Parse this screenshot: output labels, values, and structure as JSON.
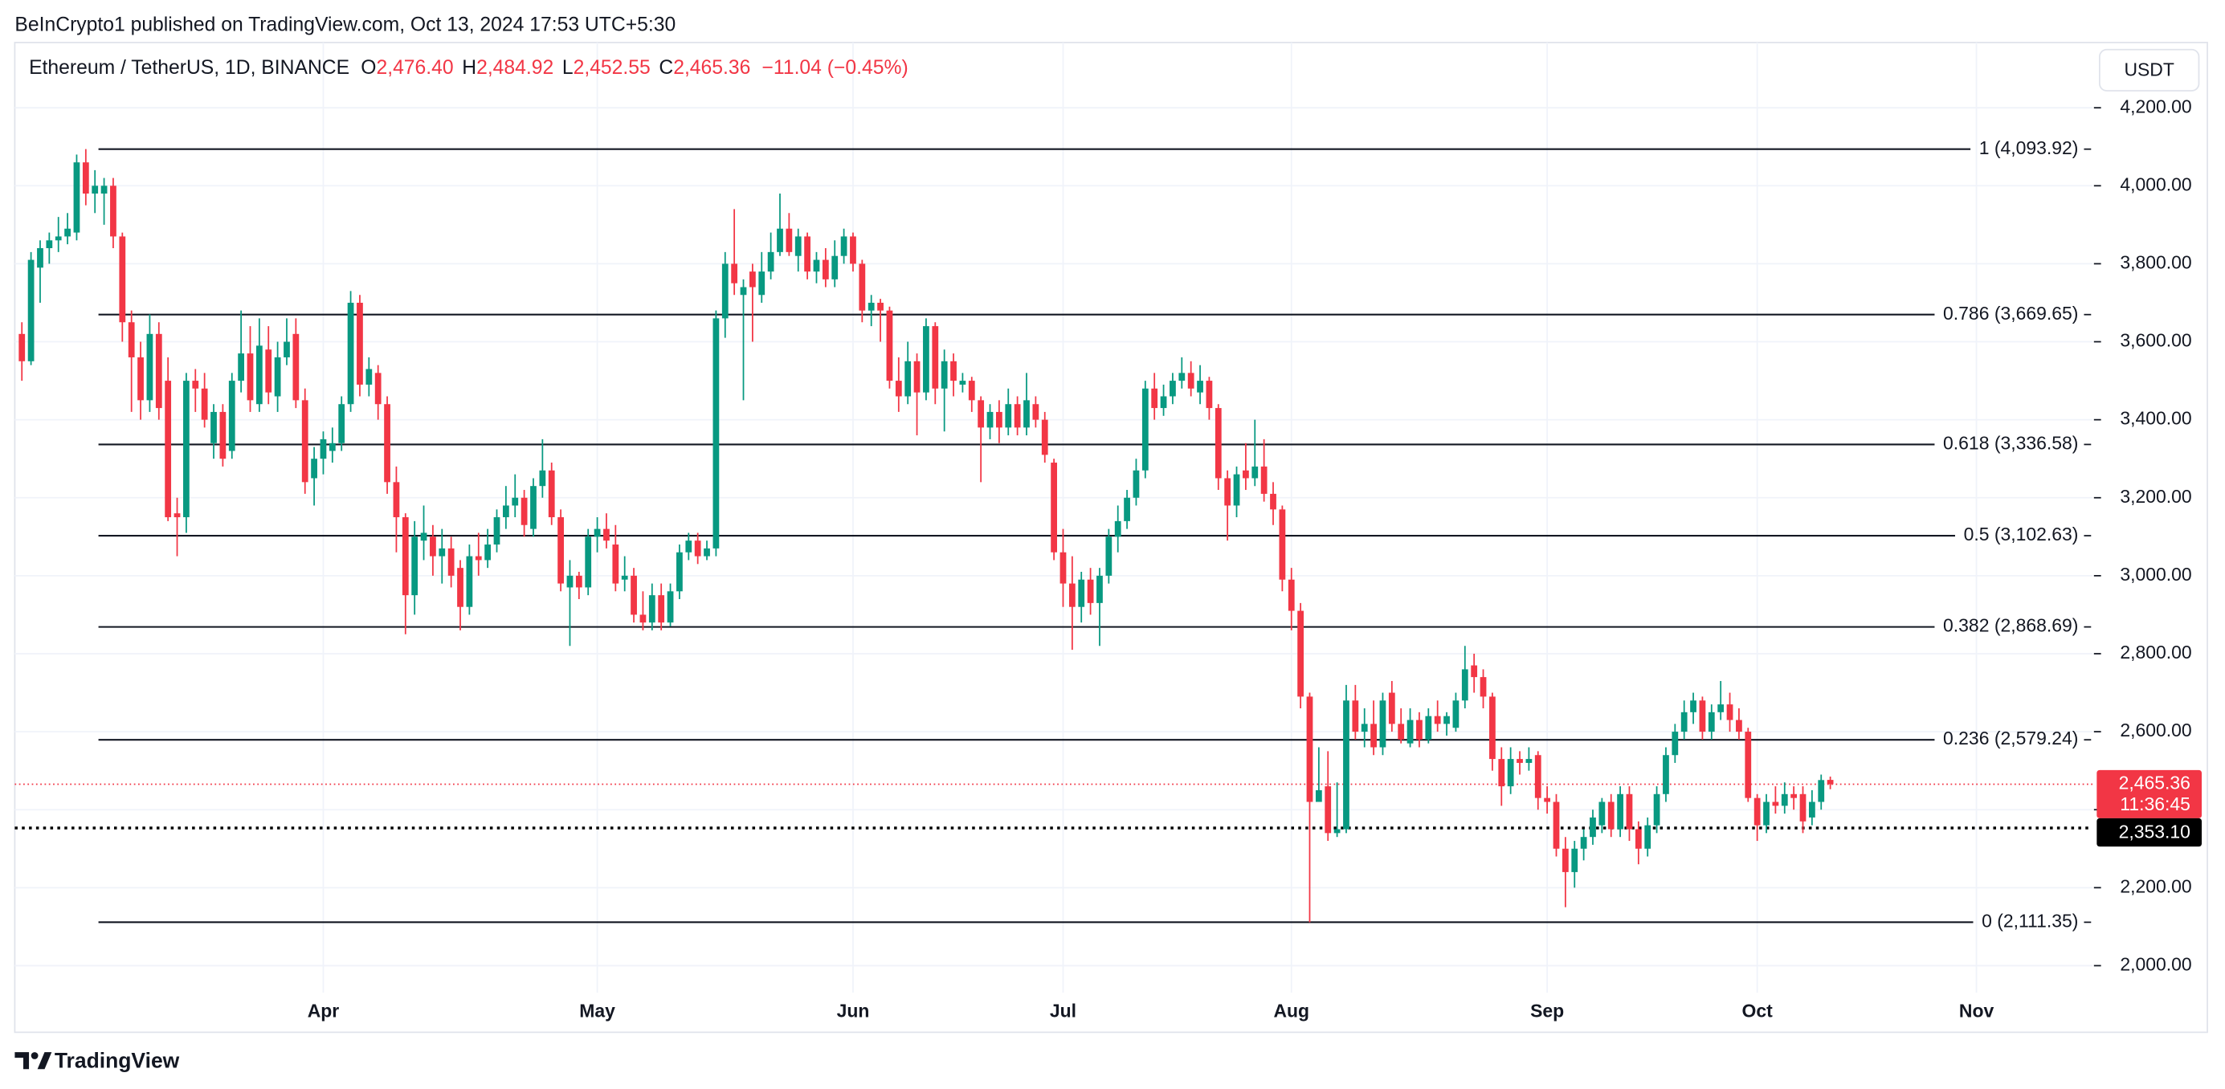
{
  "header": {
    "attribution": "BeInCrypto1 published on TradingView.com, Oct 13, 2024 17:53 UTC+5:30"
  },
  "chart_data": {
    "type": "candlestick",
    "symbol": "Ethereum / TetherUS, 1D, BINANCE",
    "ohlc_legend": [
      {
        "label": "O",
        "value": "2,476.40"
      },
      {
        "label": "H",
        "value": "2,484.92"
      },
      {
        "label": "L",
        "value": "2,452.55"
      },
      {
        "label": "C",
        "value": "2,465.36"
      }
    ],
    "change": "−11.04 (−0.45%)",
    "currency": "USDT",
    "colors": {
      "up": "#089981",
      "down": "#f23645"
    },
    "categories": [
      null,
      null,
      null,
      null,
      null,
      null,
      null,
      null,
      null,
      null,
      null,
      null,
      null,
      null,
      null,
      null,
      null,
      null,
      null,
      null,
      null,
      null,
      null,
      null,
      null,
      null,
      null,
      null,
      null,
      null,
      null,
      null,
      null,
      "Apr",
      null,
      null,
      null,
      null,
      null,
      null,
      null,
      null,
      null,
      null,
      null,
      null,
      null,
      null,
      null,
      null,
      null,
      null,
      null,
      null,
      null,
      null,
      null,
      null,
      null,
      null,
      null,
      null,
      null,
      "May",
      null,
      null,
      null,
      null,
      null,
      null,
      null,
      null,
      null,
      null,
      null,
      null,
      null,
      null,
      null,
      null,
      null,
      null,
      null,
      null,
      null,
      null,
      null,
      null,
      null,
      null,
      null,
      "Jun",
      null,
      null,
      null,
      null,
      null,
      null,
      null,
      null,
      null,
      null,
      null,
      null,
      null,
      null,
      null,
      null,
      null,
      null,
      null,
      null,
      null,
      null,
      "Jul",
      null,
      null,
      null,
      null,
      null,
      null,
      null,
      null,
      null,
      null,
      null,
      null,
      null,
      null,
      null,
      null,
      null,
      null,
      null,
      null,
      null,
      null,
      null,
      null,
      "Aug",
      null,
      null,
      null,
      null,
      null,
      null,
      null,
      null,
      null,
      null,
      null,
      null,
      null,
      null,
      null,
      null,
      null,
      null,
      null,
      null,
      null,
      null,
      null,
      null,
      null,
      null,
      null,
      "Sep",
      null,
      null,
      null,
      null,
      null,
      null,
      null,
      null,
      null,
      null,
      null,
      null,
      null,
      null,
      null,
      null,
      null,
      null,
      null,
      null,
      null,
      null,
      "Oct",
      null,
      null,
      null,
      null,
      null,
      null,
      null,
      null,
      null,
      null,
      null,
      null,
      null,
      null,
      null,
      null,
      null,
      null,
      null,
      null,
      null,
      null,
      null,
      "Nov",
      null,
      null,
      null,
      null,
      null,
      null,
      null,
      null,
      null,
      null,
      null,
      null
    ],
    "ohlc": [
      [
        3620,
        3650,
        3500,
        3550
      ],
      [
        3550,
        3830,
        3540,
        3810
      ],
      [
        3790,
        3860,
        3700,
        3840
      ],
      [
        3840,
        3880,
        3800,
        3860
      ],
      [
        3860,
        3920,
        3830,
        3870
      ],
      [
        3870,
        3930,
        3850,
        3890
      ],
      [
        3880,
        4080,
        3860,
        4060
      ],
      [
        4060,
        4094,
        3950,
        3980
      ],
      [
        3980,
        4040,
        3930,
        4000
      ],
      [
        3980,
        4020,
        3900,
        4000
      ],
      [
        4000,
        4020,
        3840,
        3870
      ],
      [
        3870,
        3880,
        3600,
        3650
      ],
      [
        3650,
        3680,
        3420,
        3560
      ],
      [
        3560,
        3600,
        3400,
        3450
      ],
      [
        3450,
        3670,
        3420,
        3620
      ],
      [
        3620,
        3650,
        3400,
        3430
      ],
      [
        3500,
        3560,
        3140,
        3150
      ],
      [
        3160,
        3200,
        3050,
        3150
      ],
      [
        3150,
        3520,
        3110,
        3500
      ],
      [
        3500,
        3530,
        3420,
        3480
      ],
      [
        3480,
        3520,
        3380,
        3400
      ],
      [
        3340,
        3440,
        3300,
        3420
      ],
      [
        3420,
        3440,
        3280,
        3300
      ],
      [
        3320,
        3520,
        3300,
        3500
      ],
      [
        3500,
        3680,
        3470,
        3570
      ],
      [
        3570,
        3640,
        3420,
        3450
      ],
      [
        3440,
        3660,
        3420,
        3590
      ],
      [
        3580,
        3640,
        3440,
        3470
      ],
      [
        3460,
        3600,
        3420,
        3560
      ],
      [
        3560,
        3660,
        3540,
        3600
      ],
      [
        3620,
        3660,
        3430,
        3450
      ],
      [
        3450,
        3480,
        3210,
        3240
      ],
      [
        3250,
        3330,
        3180,
        3300
      ],
      [
        3300,
        3370,
        3260,
        3350
      ],
      [
        3320,
        3380,
        3290,
        3340
      ],
      [
        3340,
        3460,
        3320,
        3440
      ],
      [
        3440,
        3730,
        3420,
        3700
      ],
      [
        3700,
        3720,
        3460,
        3490
      ],
      [
        3490,
        3560,
        3460,
        3530
      ],
      [
        3520,
        3540,
        3400,
        3440
      ],
      [
        3440,
        3460,
        3210,
        3240
      ],
      [
        3240,
        3280,
        3060,
        3150
      ],
      [
        3150,
        3160,
        2850,
        2950
      ],
      [
        2950,
        3140,
        2900,
        3100
      ],
      [
        3090,
        3180,
        3040,
        3110
      ],
      [
        3100,
        3130,
        3000,
        3050
      ],
      [
        3050,
        3120,
        2980,
        3070
      ],
      [
        3070,
        3100,
        2970,
        3000
      ],
      [
        3020,
        3040,
        2860,
        2920
      ],
      [
        2920,
        3080,
        2900,
        3050
      ],
      [
        3050,
        3110,
        3000,
        3040
      ],
      [
        3040,
        3120,
        3020,
        3080
      ],
      [
        3080,
        3170,
        3060,
        3150
      ],
      [
        3150,
        3230,
        3120,
        3180
      ],
      [
        3180,
        3260,
        3150,
        3200
      ],
      [
        3200,
        3220,
        3100,
        3130
      ],
      [
        3120,
        3250,
        3100,
        3230
      ],
      [
        3230,
        3350,
        3200,
        3270
      ],
      [
        3270,
        3290,
        3130,
        3150
      ],
      [
        3150,
        3170,
        2960,
        2980
      ],
      [
        2970,
        3040,
        2820,
        3000
      ],
      [
        3000,
        3010,
        2940,
        2970
      ],
      [
        2970,
        3120,
        2950,
        3100
      ],
      [
        3100,
        3150,
        3060,
        3120
      ],
      [
        3120,
        3160,
        3070,
        3090
      ],
      [
        3080,
        3130,
        2960,
        2980
      ],
      [
        2990,
        3050,
        2960,
        3000
      ],
      [
        3000,
        3020,
        2880,
        2900
      ],
      [
        2900,
        2960,
        2860,
        2880
      ],
      [
        2880,
        2980,
        2860,
        2950
      ],
      [
        2950,
        2980,
        2860,
        2880
      ],
      [
        2880,
        2980,
        2870,
        2960
      ],
      [
        2960,
        3080,
        2940,
        3060
      ],
      [
        3060,
        3110,
        3040,
        3090
      ],
      [
        3090,
        3110,
        3030,
        3050
      ],
      [
        3050,
        3090,
        3040,
        3070
      ],
      [
        3070,
        3680,
        3050,
        3660
      ],
      [
        3660,
        3830,
        3610,
        3800
      ],
      [
        3800,
        3940,
        3720,
        3750
      ],
      [
        3720,
        3760,
        3450,
        3740
      ],
      [
        3780,
        3800,
        3600,
        3740
      ],
      [
        3720,
        3830,
        3700,
        3780
      ],
      [
        3780,
        3880,
        3760,
        3830
      ],
      [
        3830,
        3980,
        3820,
        3890
      ],
      [
        3890,
        3930,
        3820,
        3830
      ],
      [
        3820,
        3890,
        3780,
        3870
      ],
      [
        3870,
        3880,
        3760,
        3780
      ],
      [
        3780,
        3830,
        3750,
        3810
      ],
      [
        3810,
        3840,
        3740,
        3760
      ],
      [
        3760,
        3860,
        3740,
        3820
      ],
      [
        3820,
        3890,
        3800,
        3870
      ],
      [
        3870,
        3880,
        3780,
        3800
      ],
      [
        3800,
        3810,
        3650,
        3680
      ],
      [
        3680,
        3720,
        3640,
        3700
      ],
      [
        3700,
        3710,
        3600,
        3680
      ],
      [
        3680,
        3690,
        3480,
        3500
      ],
      [
        3500,
        3560,
        3420,
        3460
      ],
      [
        3460,
        3600,
        3440,
        3550
      ],
      [
        3550,
        3570,
        3360,
        3470
      ],
      [
        3470,
        3660,
        3450,
        3640
      ],
      [
        3640,
        3650,
        3440,
        3480
      ],
      [
        3480,
        3580,
        3370,
        3550
      ],
      [
        3550,
        3570,
        3460,
        3500
      ],
      [
        3490,
        3520,
        3470,
        3500
      ],
      [
        3500,
        3510,
        3420,
        3450
      ],
      [
        3450,
        3460,
        3240,
        3380
      ],
      [
        3380,
        3440,
        3350,
        3420
      ],
      [
        3420,
        3450,
        3340,
        3380
      ],
      [
        3380,
        3480,
        3360,
        3440
      ],
      [
        3440,
        3460,
        3360,
        3380
      ],
      [
        3380,
        3520,
        3360,
        3450
      ],
      [
        3440,
        3460,
        3380,
        3400
      ],
      [
        3400,
        3420,
        3290,
        3310
      ],
      [
        3290,
        3300,
        3040,
        3060
      ],
      [
        3060,
        3120,
        2920,
        2980
      ],
      [
        2980,
        3050,
        2810,
        2920
      ],
      [
        2920,
        3010,
        2880,
        2990
      ],
      [
        2990,
        3020,
        2900,
        2930
      ],
      [
        2930,
        3020,
        2820,
        3000
      ],
      [
        3000,
        3120,
        2980,
        3100
      ],
      [
        3100,
        3180,
        3060,
        3140
      ],
      [
        3140,
        3220,
        3120,
        3200
      ],
      [
        3200,
        3300,
        3180,
        3270
      ],
      [
        3270,
        3500,
        3250,
        3480
      ],
      [
        3480,
        3520,
        3400,
        3430
      ],
      [
        3430,
        3490,
        3410,
        3460
      ],
      [
        3460,
        3520,
        3440,
        3500
      ],
      [
        3500,
        3560,
        3480,
        3520
      ],
      [
        3520,
        3550,
        3460,
        3480
      ],
      [
        3470,
        3540,
        3440,
        3500
      ],
      [
        3500,
        3510,
        3400,
        3430
      ],
      [
        3430,
        3440,
        3220,
        3250
      ],
      [
        3250,
        3270,
        3090,
        3180
      ],
      [
        3180,
        3280,
        3150,
        3260
      ],
      [
        3270,
        3340,
        3220,
        3250
      ],
      [
        3250,
        3400,
        3230,
        3280
      ],
      [
        3280,
        3350,
        3190,
        3210
      ],
      [
        3210,
        3240,
        3130,
        3170
      ],
      [
        3170,
        3180,
        2960,
        2990
      ],
      [
        2990,
        3020,
        2860,
        2910
      ],
      [
        2910,
        2930,
        2660,
        2690
      ],
      [
        2690,
        2700,
        2111,
        2420
      ],
      [
        2420,
        2560,
        2420,
        2450
      ],
      [
        2460,
        2550,
        2320,
        2340
      ],
      [
        2340,
        2470,
        2330,
        2350
      ],
      [
        2350,
        2720,
        2340,
        2680
      ],
      [
        2680,
        2720,
        2580,
        2600
      ],
      [
        2600,
        2660,
        2560,
        2620
      ],
      [
        2620,
        2680,
        2540,
        2560
      ],
      [
        2560,
        2700,
        2540,
        2680
      ],
      [
        2700,
        2730,
        2600,
        2620
      ],
      [
        2620,
        2660,
        2570,
        2580
      ],
      [
        2570,
        2660,
        2560,
        2630
      ],
      [
        2630,
        2650,
        2560,
        2580
      ],
      [
        2580,
        2660,
        2570,
        2640
      ],
      [
        2640,
        2680,
        2600,
        2620
      ],
      [
        2620,
        2650,
        2590,
        2640
      ],
      [
        2610,
        2700,
        2600,
        2680
      ],
      [
        2680,
        2820,
        2660,
        2760
      ],
      [
        2770,
        2800,
        2700,
        2740
      ],
      [
        2740,
        2760,
        2660,
        2690
      ],
      [
        2690,
        2700,
        2500,
        2530
      ],
      [
        2530,
        2560,
        2410,
        2460
      ],
      [
        2460,
        2560,
        2440,
        2530
      ],
      [
        2530,
        2550,
        2490,
        2520
      ],
      [
        2520,
        2560,
        2500,
        2530
      ],
      [
        2540,
        2550,
        2400,
        2430
      ],
      [
        2430,
        2460,
        2390,
        2420
      ],
      [
        2420,
        2440,
        2280,
        2300
      ],
      [
        2300,
        2330,
        2150,
        2240
      ],
      [
        2240,
        2320,
        2200,
        2300
      ],
      [
        2300,
        2350,
        2270,
        2330
      ],
      [
        2330,
        2400,
        2310,
        2380
      ],
      [
        2360,
        2430,
        2340,
        2420
      ],
      [
        2420,
        2440,
        2330,
        2350
      ],
      [
        2350,
        2460,
        2330,
        2440
      ],
      [
        2440,
        2460,
        2320,
        2350
      ],
      [
        2350,
        2370,
        2260,
        2300
      ],
      [
        2300,
        2380,
        2280,
        2360
      ],
      [
        2360,
        2460,
        2340,
        2440
      ],
      [
        2440,
        2560,
        2420,
        2540
      ],
      [
        2540,
        2620,
        2520,
        2600
      ],
      [
        2600,
        2680,
        2580,
        2650
      ],
      [
        2650,
        2700,
        2620,
        2680
      ],
      [
        2680,
        2690,
        2580,
        2600
      ],
      [
        2600,
        2670,
        2580,
        2650
      ],
      [
        2650,
        2730,
        2630,
        2670
      ],
      [
        2670,
        2700,
        2600,
        2630
      ],
      [
        2630,
        2660,
        2580,
        2600
      ],
      [
        2600,
        2610,
        2420,
        2430
      ],
      [
        2430,
        2440,
        2320,
        2360
      ],
      [
        2360,
        2440,
        2340,
        2420
      ],
      [
        2420,
        2460,
        2390,
        2410
      ],
      [
        2410,
        2470,
        2390,
        2440
      ],
      [
        2440,
        2460,
        2400,
        2430
      ],
      [
        2440,
        2460,
        2340,
        2370
      ],
      [
        2380,
        2450,
        2360,
        2420
      ],
      [
        2420,
        2490,
        2400,
        2476
      ],
      [
        2476.4,
        2484.92,
        2452.55,
        2465.36
      ],
      null,
      null,
      null,
      null,
      null,
      null,
      null,
      null,
      null,
      null,
      null,
      null,
      null,
      null,
      null,
      null,
      null,
      null,
      null,
      null,
      null,
      null,
      null,
      null,
      null,
      null,
      null,
      null
    ],
    "ylim": [
      1931,
      4360
    ],
    "yticks": [
      {
        "value": 2000,
        "label": "2,000.00"
      },
      {
        "value": 2200,
        "label": "2,200.00"
      },
      {
        "value": 2400,
        "label": "2,400.00"
      },
      {
        "value": 2600,
        "label": "2,600.00"
      },
      {
        "value": 2800,
        "label": "2,800.00"
      },
      {
        "value": 3000,
        "label": "3,000.00"
      },
      {
        "value": 3200,
        "label": "3,200.00"
      },
      {
        "value": 3400,
        "label": "3,400.00"
      },
      {
        "value": 3600,
        "label": "3,600.00"
      },
      {
        "value": 3800,
        "label": "3,800.00"
      },
      {
        "value": 4000,
        "label": "4,000.00"
      },
      {
        "value": 4200,
        "label": "4,200.00"
      }
    ],
    "grid": true,
    "fib_levels": [
      {
        "value": 4093.92,
        "label": "1 (4,093.92)"
      },
      {
        "value": 3669.65,
        "label": "0.786 (3,669.65)"
      },
      {
        "value": 3336.58,
        "label": "0.618 (3,336.58)"
      },
      {
        "value": 3102.63,
        "label": "0.5 (3,102.63)"
      },
      {
        "value": 2868.69,
        "label": "0.382 (2,868.69)"
      },
      {
        "value": 2579.24,
        "label": "0.236 (2,579.24)"
      },
      {
        "value": 2111.35,
        "label": "0 (2,111.35)"
      }
    ],
    "last_price": {
      "value": 2465.36,
      "label": "2,465.36",
      "countdown": "11:36:45",
      "color": "#f23645"
    },
    "marked_price": {
      "value": 2353.1,
      "label": "2,353.10",
      "color": "#000000"
    }
  },
  "footer": {
    "brand": "TradingView"
  }
}
